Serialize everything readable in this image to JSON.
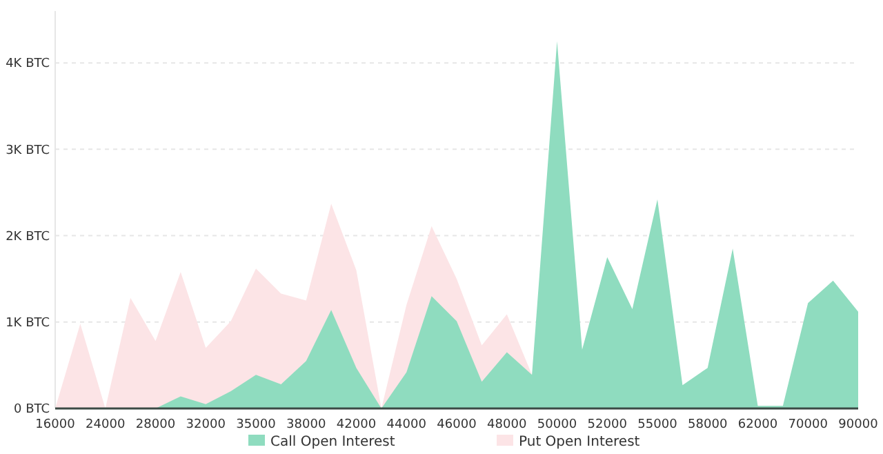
{
  "chart_data": {
    "type": "area",
    "categories": [
      "16000",
      null,
      "24000",
      null,
      "28000",
      null,
      "32000",
      null,
      "35000",
      null,
      "38000",
      null,
      "42000",
      null,
      "44000",
      null,
      "46000",
      null,
      "48000",
      null,
      "50000",
      null,
      "52000",
      null,
      "55000",
      null,
      "58000",
      null,
      "62000",
      null,
      "70000",
      null,
      "90000"
    ],
    "series": [
      {
        "name": "Put Open Interest",
        "color": "#fce4e6",
        "values": [
          0,
          980,
          0,
          1280,
          780,
          1580,
          700,
          1010,
          1620,
          1330,
          1250,
          2370,
          1600,
          0,
          1200,
          2110,
          1500,
          730,
          1090,
          390,
          null,
          null,
          null,
          null,
          null,
          null,
          null,
          null,
          null,
          null,
          null,
          null,
          null
        ]
      },
      {
        "name": "Call Open Interest",
        "color": "#8fdcbf",
        "values": [
          0,
          0,
          0,
          0,
          0,
          140,
          50,
          200,
          390,
          280,
          550,
          1140,
          470,
          0,
          420,
          1300,
          1010,
          310,
          650,
          390,
          4250,
          680,
          1750,
          1150,
          2420,
          270,
          470,
          1850,
          30,
          30,
          1220,
          1480,
          1120
        ]
      }
    ],
    "ylim": [
      0,
      4600
    ],
    "yticks": [
      {
        "value": 0,
        "label": "0 BTC"
      },
      {
        "value": 1000,
        "label": "1K BTC"
      },
      {
        "value": 2000,
        "label": "2K BTC"
      },
      {
        "value": 3000,
        "label": "3K BTC"
      },
      {
        "value": 4000,
        "label": "4K BTC"
      }
    ],
    "grid": "y",
    "legend": "bottom"
  }
}
